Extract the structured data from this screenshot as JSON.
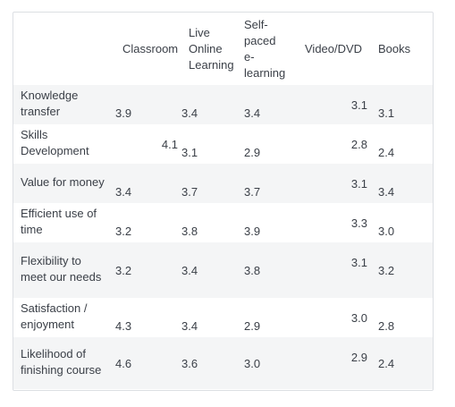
{
  "columns": [
    "Classroom",
    "Live Online Learning",
    "Self-paced e-learning",
    "Video/DVD",
    "Books"
  ],
  "rows": [
    {
      "label": "Knowledge transfer",
      "values": [
        "3.9",
        "3.4",
        "3.4",
        "3.1",
        "3.1"
      ]
    },
    {
      "label": "Skills Development",
      "values": [
        "4.1",
        "3.1",
        "2.9",
        "2.8",
        "2.4"
      ]
    },
    {
      "label": "Value for money",
      "values": [
        "3.4",
        "3.7",
        "3.7",
        "3.1",
        "3.4"
      ]
    },
    {
      "label": "Efficient use of time",
      "values": [
        "3.2",
        "3.8",
        "3.9",
        "3.3",
        "3.0"
      ]
    },
    {
      "label": "Flexibility to meet our needs",
      "values": [
        "3.2",
        "3.4",
        "3.8",
        "3.1",
        "3.2"
      ]
    },
    {
      "label": "Satisfaction / enjoyment",
      "values": [
        "4.3",
        "3.4",
        "2.9",
        "3.0",
        "2.8"
      ]
    },
    {
      "label": "Likelihood of finishing course",
      "values": [
        "4.6",
        "3.6",
        "3.0",
        "2.9",
        "2.4"
      ]
    }
  ]
}
